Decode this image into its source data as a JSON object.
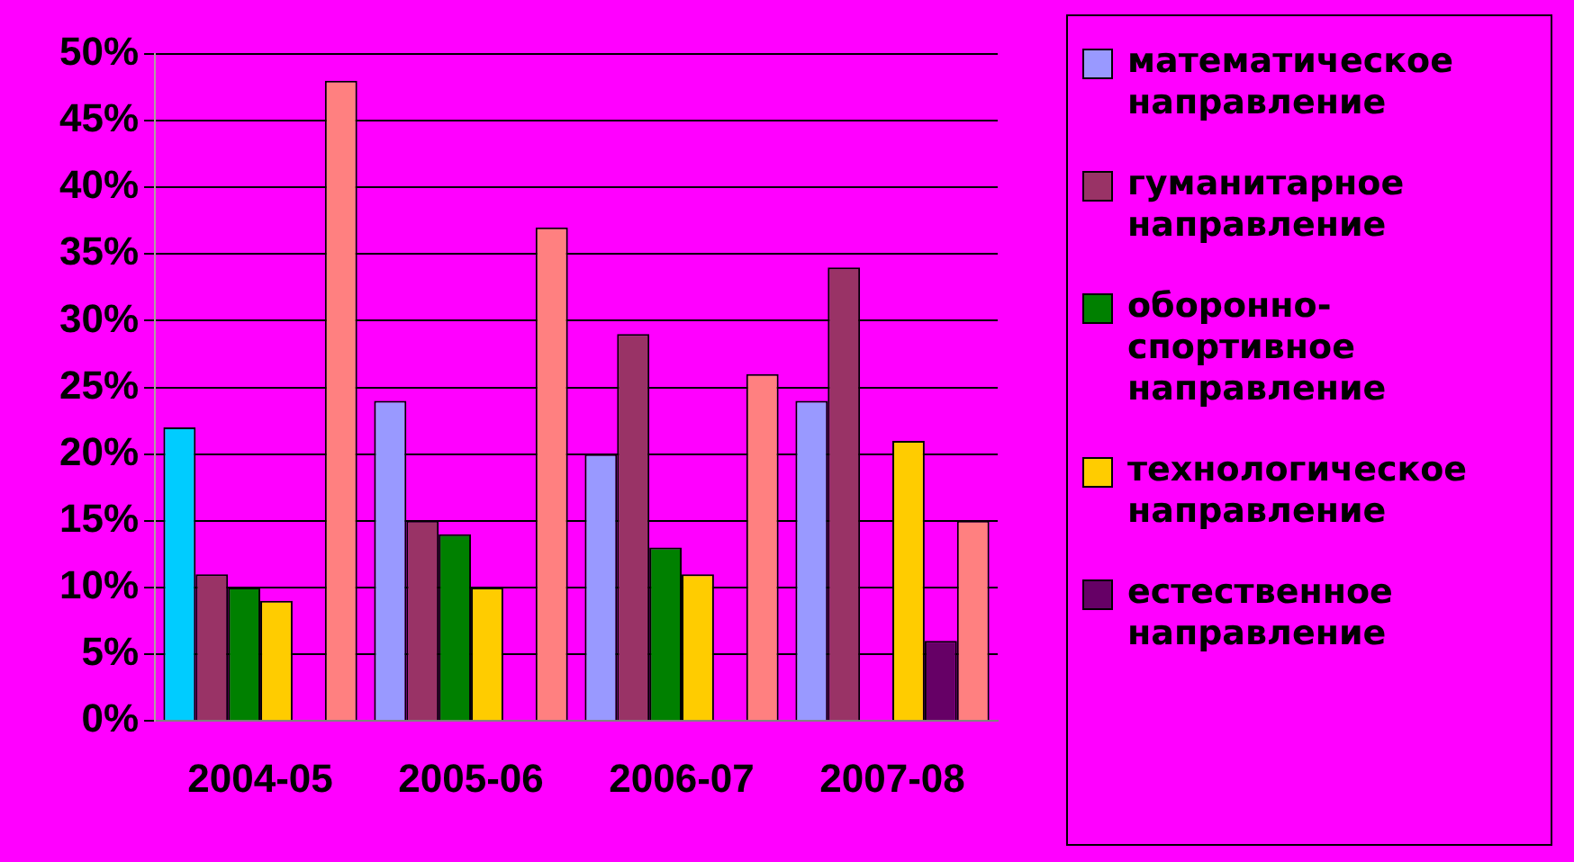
{
  "chart_data": {
    "type": "bar",
    "categories": [
      "2004-05",
      "2005-06",
      "2006-07",
      "2007-08"
    ],
    "series": [
      {
        "name": "математическое направление",
        "color": "#9999ff",
        "colors": [
          "#00ccff",
          "#9999ff",
          "#9999ff",
          "#9999ff"
        ],
        "values": [
          22,
          24,
          20,
          24
        ]
      },
      {
        "name": "гуманитарное направление",
        "color": "#993366",
        "values": [
          11,
          15,
          29,
          34
        ]
      },
      {
        "name": "оборонно-спортивное направление",
        "color": "#008000",
        "values": [
          10,
          14,
          13,
          0
        ]
      },
      {
        "name": "технологическое направление",
        "color": "#ffcc00",
        "values": [
          9,
          10,
          11,
          21
        ]
      },
      {
        "name": "естественное направление",
        "color": "#660066",
        "values": [
          0,
          0,
          0,
          6
        ]
      },
      {
        "color": "#ff8080",
        "values": [
          48,
          37,
          26,
          15
        ]
      }
    ],
    "ylim": [
      0,
      50
    ],
    "yticks": [
      {
        "value": 0,
        "label": "0%"
      },
      {
        "value": 5,
        "label": "5%"
      },
      {
        "value": 10,
        "label": "10%"
      },
      {
        "value": 15,
        "label": "15%"
      },
      {
        "value": 20,
        "label": "20%"
      },
      {
        "value": 25,
        "label": "25%"
      },
      {
        "value": 30,
        "label": "30%"
      },
      {
        "value": 35,
        "label": "35%"
      },
      {
        "value": 40,
        "label": "40%"
      },
      {
        "value": 45,
        "label": "45%"
      },
      {
        "value": 50,
        "label": "50%"
      }
    ],
    "grid": "y",
    "legend": "right"
  }
}
